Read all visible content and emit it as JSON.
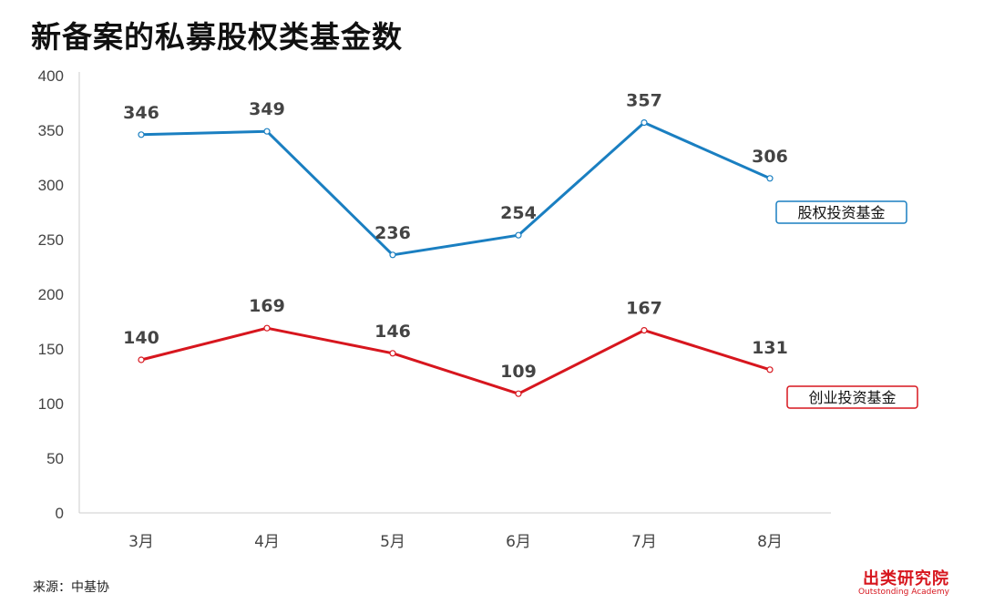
{
  "colors": {
    "series_blue": "#1a7fc1",
    "series_red": "#d7161e",
    "axis_text": "#444444",
    "label_text": "#444444",
    "axis_line": "#cccccc"
  },
  "chart_data": {
    "type": "line",
    "title": "新备案的私募股权类基金数",
    "categories": [
      "3月",
      "4月",
      "5月",
      "6月",
      "7月",
      "8月"
    ],
    "ylim": [
      0,
      400
    ],
    "yticks": [
      0,
      50,
      100,
      150,
      200,
      250,
      300,
      350,
      400
    ],
    "grid": false,
    "series": [
      {
        "name": "股权投资基金",
        "values": [
          346,
          349,
          236,
          254,
          357,
          306
        ],
        "color_key": "series_blue"
      },
      {
        "name": "创业投资基金",
        "values": [
          140,
          169,
          146,
          109,
          167,
          131
        ],
        "color_key": "series_red"
      }
    ]
  },
  "footer": {
    "source": "来源：中基协",
    "brand_name": "出类研究院",
    "brand_sub": "Outstonding Academy"
  }
}
